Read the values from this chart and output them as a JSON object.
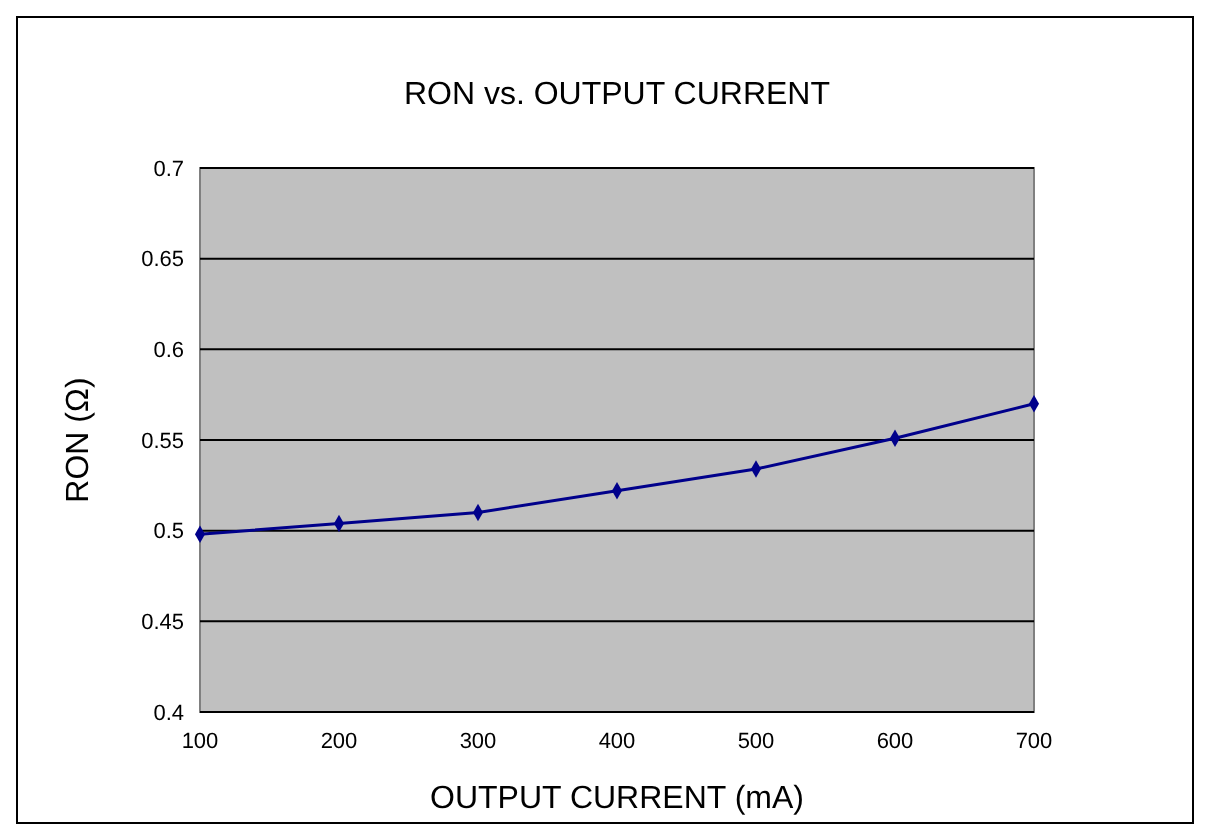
{
  "chart_data": {
    "type": "line",
    "title": "RON vs. OUTPUT CURRENT",
    "xlabel": "OUTPUT CURRENT (mA)",
    "ylabel": "RON (Ω)",
    "x": [
      100,
      200,
      300,
      400,
      500,
      600,
      700
    ],
    "series": [
      {
        "color": "#00008b",
        "values": [
          0.498,
          0.504,
          0.51,
          0.522,
          0.534,
          0.551,
          0.57
        ]
      }
    ],
    "xlim": [
      100,
      700
    ],
    "xticks": [
      100,
      200,
      300,
      400,
      500,
      600,
      700
    ],
    "ylim": [
      0.4,
      0.7
    ],
    "yticks": [
      {
        "value": 0.4,
        "label": "0.4"
      },
      {
        "value": 0.45,
        "label": "0.45"
      },
      {
        "value": 0.5,
        "label": "0.5"
      },
      {
        "value": 0.55,
        "label": "0.55"
      },
      {
        "value": 0.6,
        "label": "0.6"
      },
      {
        "value": 0.65,
        "label": "0.65"
      },
      {
        "value": 0.7,
        "label": "0.7"
      }
    ],
    "grid": "y",
    "marker": "diamond",
    "line_style": "solid"
  }
}
